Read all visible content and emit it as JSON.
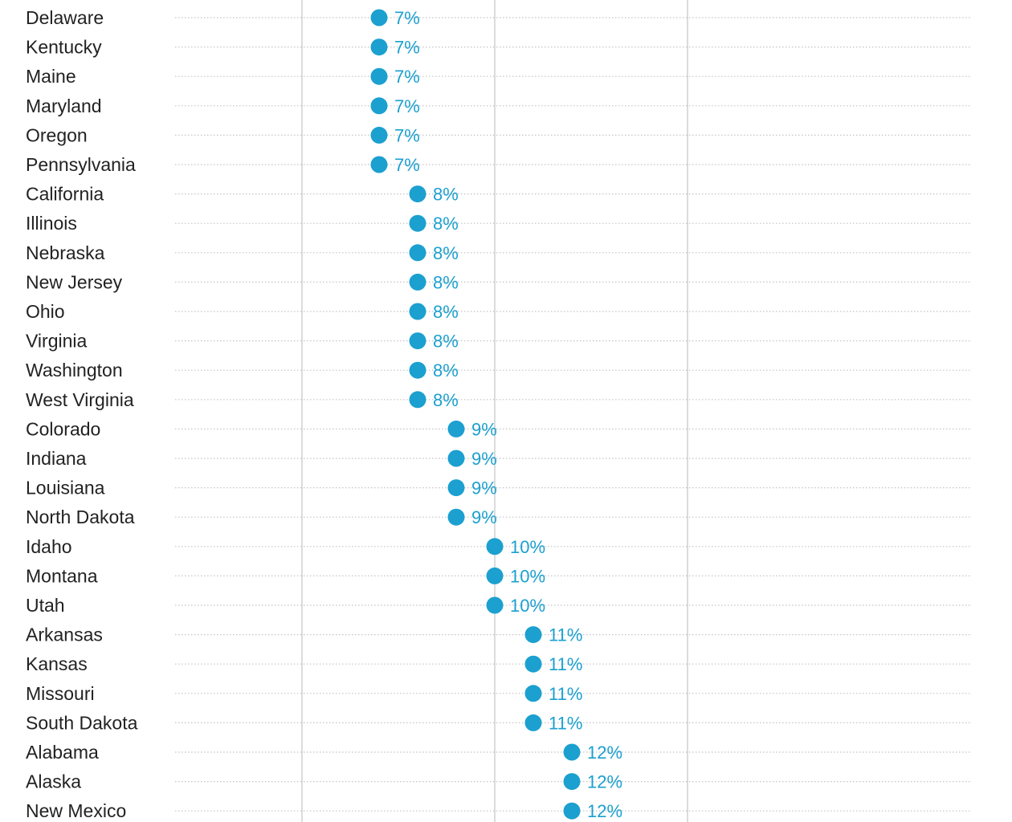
{
  "chart_data": {
    "type": "scatter",
    "orientation": "horizontal-dot",
    "accent_color": "#1ba0d0",
    "value_suffix": "%",
    "grid": true,
    "rows": [
      {
        "category": "Delaware",
        "value": 7,
        "label": "7%"
      },
      {
        "category": "Kentucky",
        "value": 7,
        "label": "7%"
      },
      {
        "category": "Maine",
        "value": 7,
        "label": "7%"
      },
      {
        "category": "Maryland",
        "value": 7,
        "label": "7%"
      },
      {
        "category": "Oregon",
        "value": 7,
        "label": "7%"
      },
      {
        "category": "Pennsylvania",
        "value": 7,
        "label": "7%"
      },
      {
        "category": "California",
        "value": 8,
        "label": "8%"
      },
      {
        "category": "Illinois",
        "value": 8,
        "label": "8%"
      },
      {
        "category": "Nebraska",
        "value": 8,
        "label": "8%"
      },
      {
        "category": "New Jersey",
        "value": 8,
        "label": "8%"
      },
      {
        "category": "Ohio",
        "value": 8,
        "label": "8%"
      },
      {
        "category": "Virginia",
        "value": 8,
        "label": "8%"
      },
      {
        "category": "Washington",
        "value": 8,
        "label": "8%"
      },
      {
        "category": "West Virginia",
        "value": 8,
        "label": "8%"
      },
      {
        "category": "Colorado",
        "value": 9,
        "label": "9%"
      },
      {
        "category": "Indiana",
        "value": 9,
        "label": "9%"
      },
      {
        "category": "Louisiana",
        "value": 9,
        "label": "9%"
      },
      {
        "category": "North Dakota",
        "value": 9,
        "label": "9%"
      },
      {
        "category": "Idaho",
        "value": 10,
        "label": "10%"
      },
      {
        "category": "Montana",
        "value": 10,
        "label": "10%"
      },
      {
        "category": "Utah",
        "value": 10,
        "label": "10%"
      },
      {
        "category": "Arkansas",
        "value": 11,
        "label": "11%"
      },
      {
        "category": "Kansas",
        "value": 11,
        "label": "11%"
      },
      {
        "category": "Missouri",
        "value": 11,
        "label": "11%"
      },
      {
        "category": "South Dakota",
        "value": 11,
        "label": "11%"
      },
      {
        "category": "Alabama",
        "value": 12,
        "label": "12%"
      },
      {
        "category": "Alaska",
        "value": 12,
        "label": "12%"
      },
      {
        "category": "New Mexico",
        "value": 12,
        "label": "12%"
      }
    ],
    "xlim": [
      3.5,
      16.5
    ],
    "x_gridlines": [
      5,
      10,
      15
    ]
  }
}
